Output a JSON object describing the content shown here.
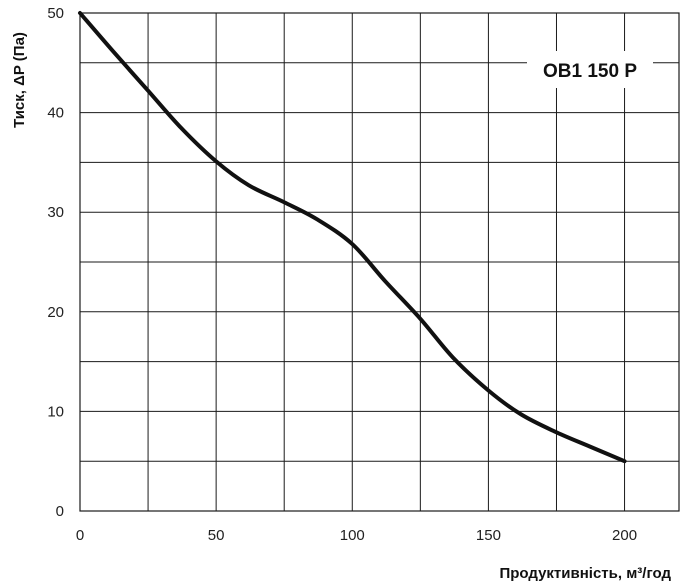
{
  "chart_data": {
    "type": "line",
    "title": "",
    "model_label": "OB1 150 P",
    "xlabel": "Продуктивність, м³/год",
    "ylabel": "Тиск, ΔP (Па)",
    "xlim": [
      0,
      220
    ],
    "ylim": [
      0,
      50
    ],
    "x_ticks": [
      0,
      50,
      100,
      150,
      200
    ],
    "y_ticks": [
      0,
      10,
      20,
      30,
      40,
      50
    ],
    "x_ticks_text": [
      "0",
      "50",
      "100",
      "150",
      "200"
    ],
    "y_ticks_text": [
      "0",
      "10",
      "20",
      "30",
      "40",
      "50"
    ],
    "grid": true,
    "series": [
      {
        "color": "#111111",
        "x": [
          0,
          12,
          25,
          37,
          50,
          62,
          75,
          87,
          100,
          112,
          125,
          137,
          150,
          162,
          175,
          187,
          200
        ],
        "y": [
          50,
          46.2,
          42.2,
          38.5,
          35.1,
          32.7,
          31,
          29.3,
          26.8,
          23.1,
          19.3,
          15.4,
          12.1,
          9.7,
          7.9,
          6.5,
          5
        ]
      }
    ]
  }
}
